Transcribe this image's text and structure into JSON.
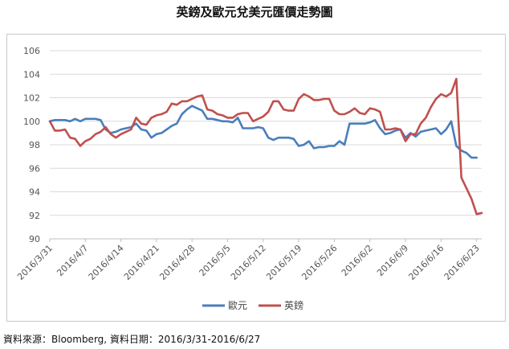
{
  "title": "英鎊及歐元兌美元匯價走勢圖",
  "source": "資料來源：Bloomberg, 資料日期：2016/3/31-2016/6/27",
  "chart_data": {
    "type": "line",
    "title": "英鎊及歐元兌美元匯價走勢圖",
    "xlabel": "",
    "ylabel": "",
    "ylim": [
      90,
      106
    ],
    "yticks": [
      90,
      92,
      94,
      96,
      98,
      100,
      102,
      104,
      106
    ],
    "grid": true,
    "legend_position": "bottom",
    "x_tick_labels": [
      "2016/3/31",
      "2016/4/7",
      "2016/4/14",
      "2016/4/21",
      "2016/4/28",
      "2016/5/5",
      "2016/5/12",
      "2016/5/19",
      "2016/5/26",
      "2016/6/2",
      "2016/6/9",
      "2016/6/16",
      "2016/6/23"
    ],
    "series": [
      {
        "name": "歐元",
        "color": "#4a7ebb",
        "points": [
          [
            0,
            100.0
          ],
          [
            1,
            100.1
          ],
          [
            2,
            100.1
          ],
          [
            3,
            100.1
          ],
          [
            4,
            100.0
          ],
          [
            5,
            100.2
          ],
          [
            6,
            100.0
          ],
          [
            7,
            100.2
          ],
          [
            8,
            100.2
          ],
          [
            9,
            100.2
          ],
          [
            10,
            100.1
          ],
          [
            11,
            99.3
          ],
          [
            12,
            99.0
          ],
          [
            13,
            99.1
          ],
          [
            14,
            99.3
          ],
          [
            15,
            99.4
          ],
          [
            16,
            99.5
          ],
          [
            17,
            99.8
          ],
          [
            18,
            99.3
          ],
          [
            19,
            99.2
          ],
          [
            20,
            98.6
          ],
          [
            21,
            98.9
          ],
          [
            22,
            99.0
          ],
          [
            23,
            99.3
          ],
          [
            24,
            99.6
          ],
          [
            25,
            99.8
          ],
          [
            26,
            100.6
          ],
          [
            27,
            101.0
          ],
          [
            28,
            101.3
          ],
          [
            29,
            101.1
          ],
          [
            30,
            100.9
          ],
          [
            31,
            100.2
          ],
          [
            32,
            100.2
          ],
          [
            33,
            100.1
          ],
          [
            34,
            100.0
          ],
          [
            35,
            100.0
          ],
          [
            36,
            99.9
          ],
          [
            37,
            100.3
          ],
          [
            38,
            99.4
          ],
          [
            39,
            99.4
          ],
          [
            40,
            99.4
          ],
          [
            41,
            99.5
          ],
          [
            42,
            99.4
          ],
          [
            43,
            98.6
          ],
          [
            44,
            98.4
          ],
          [
            45,
            98.6
          ],
          [
            46,
            98.6
          ],
          [
            47,
            98.6
          ],
          [
            48,
            98.5
          ],
          [
            49,
            97.9
          ],
          [
            50,
            98.0
          ],
          [
            51,
            98.3
          ],
          [
            52,
            97.7
          ],
          [
            53,
            97.8
          ],
          [
            54,
            97.8
          ],
          [
            55,
            97.9
          ],
          [
            56,
            97.9
          ],
          [
            57,
            98.3
          ],
          [
            58,
            98.0
          ],
          [
            59,
            99.8
          ],
          [
            60,
            99.8
          ],
          [
            61,
            99.8
          ],
          [
            62,
            99.8
          ],
          [
            63,
            99.9
          ],
          [
            64,
            100.1
          ],
          [
            65,
            99.4
          ],
          [
            66,
            98.9
          ],
          [
            67,
            99.0
          ],
          [
            68,
            99.2
          ],
          [
            69,
            99.3
          ],
          [
            70,
            98.6
          ],
          [
            71,
            99.0
          ],
          [
            72,
            98.7
          ],
          [
            73,
            99.1
          ],
          [
            74,
            99.2
          ],
          [
            75,
            99.3
          ],
          [
            76,
            99.4
          ],
          [
            77,
            98.9
          ],
          [
            78,
            99.3
          ],
          [
            79,
            100.0
          ],
          [
            80,
            97.9
          ],
          [
            81,
            97.5
          ],
          [
            82,
            97.3
          ],
          [
            83,
            96.9
          ],
          [
            84,
            96.9
          ]
        ]
      },
      {
        "name": "英鎊",
        "color": "#c0504d",
        "points": [
          [
            0,
            100.0
          ],
          [
            1,
            99.2
          ],
          [
            2,
            99.2
          ],
          [
            3,
            99.3
          ],
          [
            4,
            98.6
          ],
          [
            5,
            98.5
          ],
          [
            6,
            97.9
          ],
          [
            7,
            98.3
          ],
          [
            8,
            98.5
          ],
          [
            9,
            98.9
          ],
          [
            10,
            99.1
          ],
          [
            11,
            99.5
          ],
          [
            12,
            98.9
          ],
          [
            13,
            98.6
          ],
          [
            14,
            98.9
          ],
          [
            15,
            99.1
          ],
          [
            16,
            99.3
          ],
          [
            17,
            100.3
          ],
          [
            18,
            99.8
          ],
          [
            19,
            99.7
          ],
          [
            20,
            100.3
          ],
          [
            21,
            100.5
          ],
          [
            22,
            100.6
          ],
          [
            23,
            100.8
          ],
          [
            24,
            101.5
          ],
          [
            25,
            101.4
          ],
          [
            26,
            101.7
          ],
          [
            27,
            101.7
          ],
          [
            28,
            101.9
          ],
          [
            29,
            102.1
          ],
          [
            30,
            102.2
          ],
          [
            31,
            101.0
          ],
          [
            32,
            100.9
          ],
          [
            33,
            100.6
          ],
          [
            34,
            100.5
          ],
          [
            35,
            100.3
          ],
          [
            36,
            100.3
          ],
          [
            37,
            100.6
          ],
          [
            38,
            100.7
          ],
          [
            39,
            100.7
          ],
          [
            40,
            100.0
          ],
          [
            41,
            100.2
          ],
          [
            42,
            100.4
          ],
          [
            43,
            100.8
          ],
          [
            44,
            101.7
          ],
          [
            45,
            101.7
          ],
          [
            46,
            101.0
          ],
          [
            47,
            100.9
          ],
          [
            48,
            100.9
          ],
          [
            49,
            101.9
          ],
          [
            50,
            102.3
          ],
          [
            51,
            102.1
          ],
          [
            52,
            101.8
          ],
          [
            53,
            101.8
          ],
          [
            54,
            101.9
          ],
          [
            55,
            101.9
          ],
          [
            56,
            100.9
          ],
          [
            57,
            100.6
          ],
          [
            58,
            100.6
          ],
          [
            59,
            100.8
          ],
          [
            60,
            101.1
          ],
          [
            61,
            100.7
          ],
          [
            62,
            100.6
          ],
          [
            63,
            101.1
          ],
          [
            64,
            101.0
          ],
          [
            65,
            100.8
          ],
          [
            66,
            99.3
          ],
          [
            67,
            99.3
          ],
          [
            68,
            99.4
          ],
          [
            69,
            99.3
          ],
          [
            70,
            98.3
          ],
          [
            71,
            98.9
          ],
          [
            72,
            98.9
          ],
          [
            73,
            99.8
          ],
          [
            74,
            100.3
          ],
          [
            75,
            101.2
          ],
          [
            76,
            101.9
          ],
          [
            77,
            102.3
          ],
          [
            78,
            102.1
          ],
          [
            79,
            102.4
          ],
          [
            80,
            103.6
          ],
          [
            81,
            95.2
          ],
          [
            82,
            94.3
          ],
          [
            83,
            93.4
          ],
          [
            84,
            92.1
          ],
          [
            85,
            92.2
          ]
        ]
      }
    ]
  }
}
